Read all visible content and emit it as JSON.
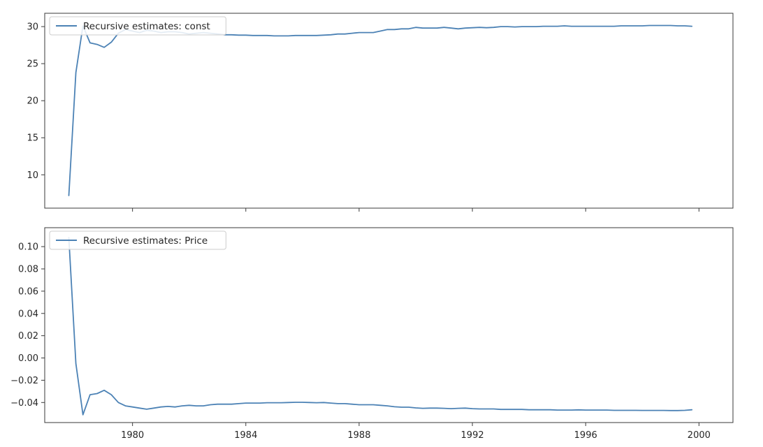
{
  "style": {
    "line_color": "#4c82b5",
    "axes_color": "#3a3a3a",
    "legend_border": "#cccccc",
    "background": "#ffffff"
  },
  "chart_data": [
    {
      "type": "line",
      "title": "",
      "xlabel": "",
      "ylabel": "",
      "xlim": [
        1976.9,
        2001.2
      ],
      "ylim": [
        5.5,
        31.8
      ],
      "grid": false,
      "legend_position": "top-left",
      "x_ticks": [
        1980,
        1984,
        1988,
        1992,
        1996,
        2000
      ],
      "x_tick_labels": [],
      "y_ticks": [
        10,
        15,
        20,
        25,
        30
      ],
      "y_tick_labels": [
        "10",
        "15",
        "20",
        "25",
        "30"
      ],
      "series": [
        {
          "name": "Recursive estimates: const",
          "x": [
            1977.75,
            1978.0,
            1978.25,
            1978.5,
            1978.75,
            1979.0,
            1979.25,
            1979.5,
            1979.75,
            1980.0,
            1980.25,
            1980.5,
            1980.75,
            1981.0,
            1981.25,
            1981.5,
            1981.75,
            1982.0,
            1982.25,
            1982.5,
            1982.75,
            1983.0,
            1983.25,
            1983.5,
            1983.75,
            1984.0,
            1984.25,
            1984.5,
            1984.75,
            1985.0,
            1985.25,
            1985.5,
            1985.75,
            1986.0,
            1986.25,
            1986.5,
            1986.75,
            1987.0,
            1987.25,
            1987.5,
            1987.75,
            1988.0,
            1988.25,
            1988.5,
            1988.75,
            1989.0,
            1989.25,
            1989.5,
            1989.75,
            1990.0,
            1990.25,
            1990.5,
            1990.75,
            1991.0,
            1991.25,
            1991.5,
            1991.75,
            1992.0,
            1992.25,
            1992.5,
            1992.75,
            1993.0,
            1993.25,
            1993.5,
            1993.75,
            1994.0,
            1994.25,
            1994.5,
            1994.75,
            1995.0,
            1995.25,
            1995.5,
            1995.75,
            1996.0,
            1996.25,
            1996.5,
            1996.75,
            1997.0,
            1997.25,
            1997.5,
            1997.75,
            1998.0,
            1998.25,
            1998.5,
            1998.75,
            1999.0,
            1999.25,
            1999.5,
            1999.75
          ],
          "values": [
            7.2,
            23.8,
            30.1,
            27.8,
            27.6,
            27.2,
            27.9,
            29.1,
            29.6,
            29.4,
            29.2,
            29.5,
            29.4,
            29.2,
            29.3,
            29.3,
            29.2,
            29.0,
            29.1,
            29.2,
            29.1,
            29.0,
            28.9,
            28.9,
            28.85,
            28.85,
            28.8,
            28.8,
            28.8,
            28.75,
            28.75,
            28.75,
            28.8,
            28.8,
            28.8,
            28.8,
            28.85,
            28.9,
            29.0,
            29.0,
            29.1,
            29.2,
            29.2,
            29.2,
            29.4,
            29.6,
            29.6,
            29.7,
            29.7,
            29.9,
            29.8,
            29.8,
            29.8,
            29.9,
            29.8,
            29.7,
            29.8,
            29.85,
            29.9,
            29.85,
            29.9,
            30.0,
            30.0,
            29.95,
            30.0,
            30.0,
            30.0,
            30.05,
            30.05,
            30.05,
            30.1,
            30.05,
            30.05,
            30.05,
            30.05,
            30.05,
            30.05,
            30.05,
            30.1,
            30.1,
            30.1,
            30.1,
            30.15,
            30.15,
            30.15,
            30.15,
            30.1,
            30.1,
            30.05
          ]
        }
      ]
    },
    {
      "type": "line",
      "title": "",
      "xlabel": "",
      "ylabel": "",
      "xlim": [
        1976.9,
        2001.2
      ],
      "ylim": [
        -0.058,
        0.117
      ],
      "grid": false,
      "legend_position": "top-left",
      "x_ticks": [
        1980,
        1984,
        1988,
        1992,
        1996,
        2000
      ],
      "x_tick_labels": [
        "1980",
        "1984",
        "1988",
        "1992",
        "1996",
        "2000"
      ],
      "y_ticks": [
        -0.04,
        -0.02,
        0.0,
        0.02,
        0.04,
        0.06,
        0.08,
        0.1
      ],
      "y_tick_labels": [
        "−0.04",
        "−0.02",
        "0.00",
        "0.02",
        "0.04",
        "0.06",
        "0.08",
        "0.10"
      ],
      "series": [
        {
          "name": "Recursive estimates: Price",
          "x": [
            1977.75,
            1978.0,
            1978.25,
            1978.5,
            1978.75,
            1979.0,
            1979.25,
            1979.5,
            1979.75,
            1980.0,
            1980.25,
            1980.5,
            1980.75,
            1981.0,
            1981.25,
            1981.5,
            1981.75,
            1982.0,
            1982.25,
            1982.5,
            1982.75,
            1983.0,
            1983.25,
            1983.5,
            1983.75,
            1984.0,
            1984.25,
            1984.5,
            1984.75,
            1985.0,
            1985.25,
            1985.5,
            1985.75,
            1986.0,
            1986.25,
            1986.5,
            1986.75,
            1987.0,
            1987.25,
            1987.5,
            1987.75,
            1988.0,
            1988.25,
            1988.5,
            1988.75,
            1989.0,
            1989.25,
            1989.5,
            1989.75,
            1990.0,
            1990.25,
            1990.5,
            1990.75,
            1991.0,
            1991.25,
            1991.5,
            1991.75,
            1992.0,
            1992.25,
            1992.5,
            1992.75,
            1993.0,
            1993.25,
            1993.5,
            1993.75,
            1994.0,
            1994.25,
            1994.5,
            1994.75,
            1995.0,
            1995.25,
            1995.5,
            1995.75,
            1996.0,
            1996.25,
            1996.5,
            1996.75,
            1997.0,
            1997.25,
            1997.5,
            1997.75,
            1998.0,
            1998.25,
            1998.5,
            1998.75,
            1999.0,
            1999.25,
            1999.5,
            1999.75
          ],
          "values": [
            0.108,
            -0.005,
            -0.051,
            -0.033,
            -0.032,
            -0.029,
            -0.033,
            -0.04,
            -0.043,
            -0.044,
            -0.045,
            -0.046,
            -0.045,
            -0.044,
            -0.0435,
            -0.044,
            -0.043,
            -0.0425,
            -0.043,
            -0.043,
            -0.042,
            -0.0415,
            -0.0415,
            -0.0415,
            -0.041,
            -0.0405,
            -0.0405,
            -0.0405,
            -0.0402,
            -0.0402,
            -0.0402,
            -0.04,
            -0.0398,
            -0.0398,
            -0.04,
            -0.0402,
            -0.04,
            -0.0405,
            -0.041,
            -0.041,
            -0.0415,
            -0.042,
            -0.042,
            -0.042,
            -0.0425,
            -0.043,
            -0.0438,
            -0.0442,
            -0.0442,
            -0.0448,
            -0.0452,
            -0.045,
            -0.045,
            -0.0452,
            -0.0455,
            -0.0452,
            -0.045,
            -0.0455,
            -0.0458,
            -0.0458,
            -0.0458,
            -0.0462,
            -0.0462,
            -0.0462,
            -0.0462,
            -0.0465,
            -0.0465,
            -0.0465,
            -0.0465,
            -0.0468,
            -0.0468,
            -0.0468,
            -0.0466,
            -0.0468,
            -0.0468,
            -0.0468,
            -0.0468,
            -0.047,
            -0.047,
            -0.047,
            -0.047,
            -0.0471,
            -0.0471,
            -0.0471,
            -0.0471,
            -0.0472,
            -0.0472,
            -0.047,
            -0.0465
          ]
        }
      ]
    }
  ]
}
